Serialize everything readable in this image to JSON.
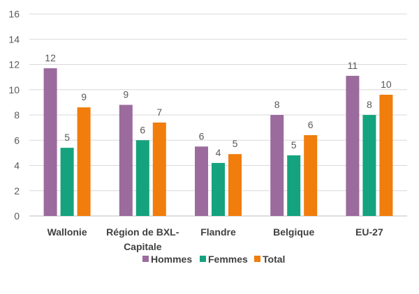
{
  "chart_data": {
    "type": "bar",
    "categories": [
      [
        "Wallonie"
      ],
      [
        "Région de BXL-",
        "Capitale"
      ],
      [
        "Flandre"
      ],
      [
        "Belgique"
      ],
      [
        "EU-27"
      ]
    ],
    "series": [
      {
        "name": "Hommes",
        "color": "#9B6B9E",
        "values": [
          11.7,
          8.8,
          5.5,
          8.0,
          11.1
        ],
        "labels": [
          "12",
          "9",
          "6",
          "8",
          "11"
        ]
      },
      {
        "name": "Femmes",
        "color": "#14A37E",
        "values": [
          5.4,
          6.0,
          4.2,
          4.8,
          8.0
        ],
        "labels": [
          "5",
          "6",
          "4",
          "5",
          "8"
        ]
      },
      {
        "name": "Total",
        "color": "#F07D0C",
        "values": [
          8.6,
          7.4,
          4.9,
          6.4,
          9.6
        ],
        "labels": [
          "9",
          "7",
          "5",
          "6",
          "10"
        ]
      }
    ],
    "ylim": [
      0,
      16
    ],
    "yticks": [
      0,
      2,
      4,
      6,
      8,
      10,
      12,
      14,
      16
    ],
    "grid": true,
    "legend_position": "bottom"
  }
}
